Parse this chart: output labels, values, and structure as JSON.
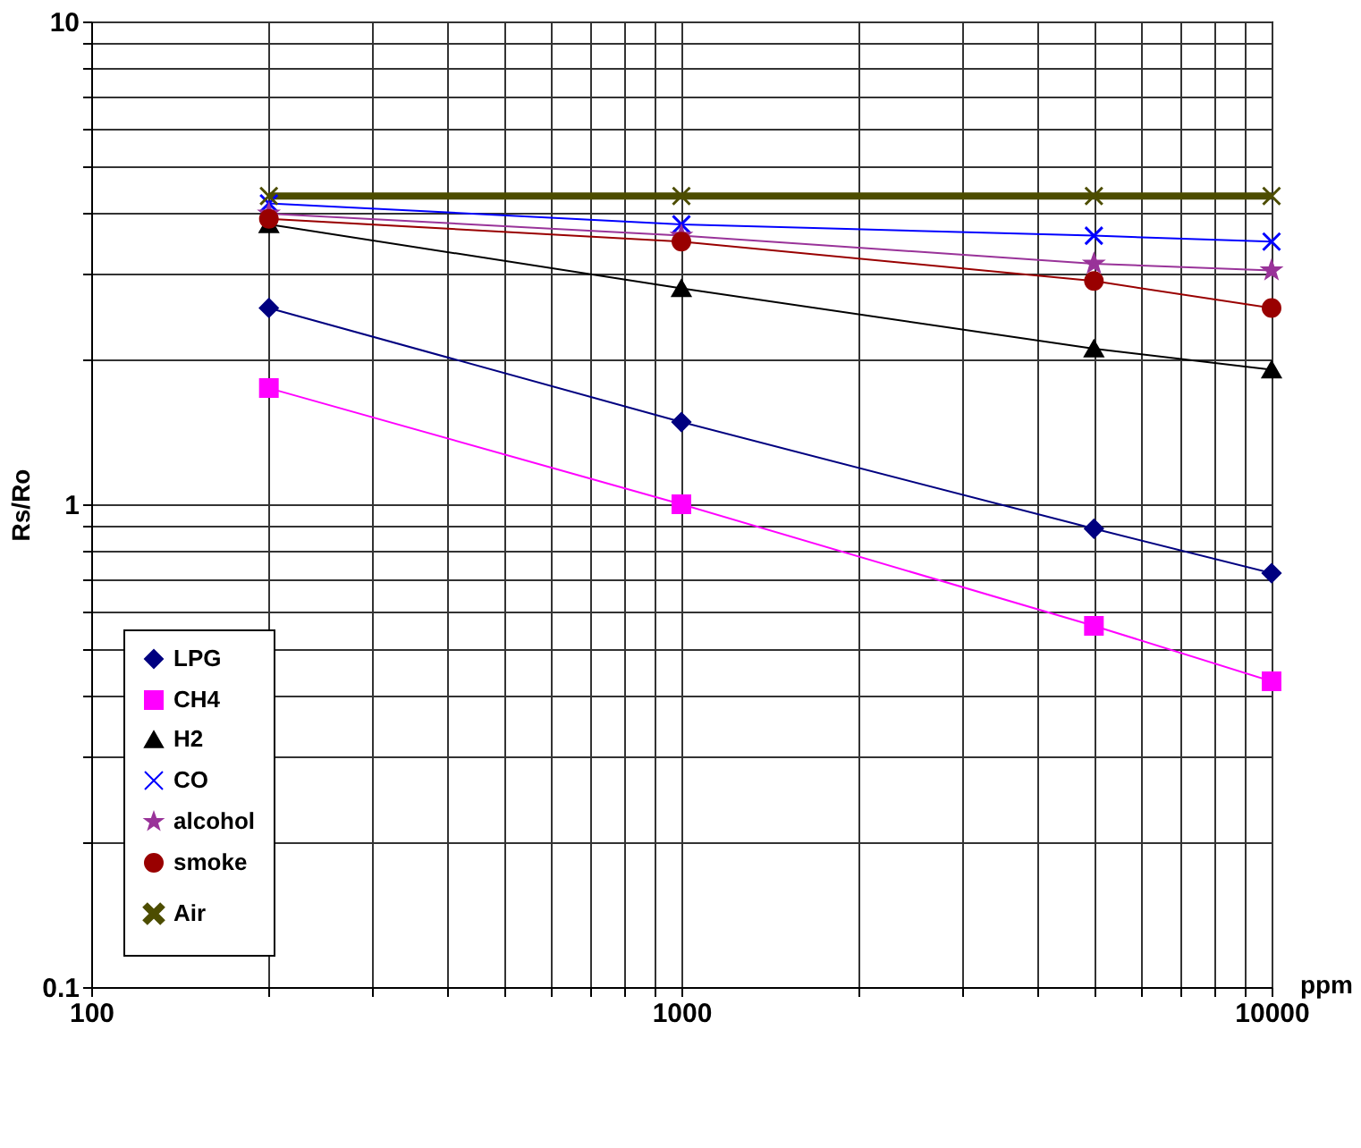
{
  "chart_data": {
    "type": "line",
    "xlabel": "ppm",
    "ylabel": "Rs/Ro",
    "log": "xy",
    "grid": true,
    "legend": "bottom left",
    "xlim": [
      100,
      10000
    ],
    "ylim": [
      0.1,
      10
    ],
    "xticks": [
      100,
      {
        "value": 200,
        "label": null
      },
      {
        "value": 300,
        "label": null
      },
      {
        "value": 400,
        "label": null
      },
      {
        "value": 500,
        "label": null
      },
      {
        "value": 600,
        "label": null
      },
      {
        "value": 700,
        "label": null
      },
      {
        "value": 800,
        "label": null
      },
      {
        "value": 900,
        "label": null
      },
      1000,
      {
        "value": 2000,
        "label": null
      },
      {
        "value": 3000,
        "label": null
      },
      {
        "value": 4000,
        "label": null
      },
      {
        "value": 5000,
        "label": null
      },
      {
        "value": 6000,
        "label": null
      },
      {
        "value": 7000,
        "label": null
      },
      {
        "value": 8000,
        "label": null
      },
      {
        "value": 9000,
        "label": null
      },
      10000
    ],
    "yticks": [
      {
        "value": 0.1,
        "label": "0.1"
      },
      {
        "value": 0.2,
        "label": null
      },
      {
        "value": 0.3,
        "label": null
      },
      {
        "value": 0.4,
        "label": null
      },
      {
        "value": 0.5,
        "label": null
      },
      {
        "value": 0.6,
        "label": null
      },
      {
        "value": 0.7,
        "label": null
      },
      {
        "value": 0.8,
        "label": null
      },
      {
        "value": 0.9,
        "label": null
      },
      1,
      {
        "value": 2,
        "label": null
      },
      {
        "value": 3,
        "label": null
      },
      {
        "value": 4,
        "label": null
      },
      {
        "value": 5,
        "label": null
      },
      {
        "value": 6,
        "label": null
      },
      {
        "value": 7,
        "label": null
      },
      {
        "value": 8,
        "label": null
      },
      {
        "value": 9,
        "label": null
      },
      10
    ],
    "x": [
      200,
      1000,
      5000,
      10000
    ],
    "series": [
      {
        "name": "LPG",
        "color": "#000080",
        "marker": "diamond",
        "values": [
          2.55,
          1.48,
          0.89,
          0.72
        ]
      },
      {
        "name": "CH4",
        "color": "#ff00ff",
        "marker": "square",
        "values": [
          1.74,
          1.0,
          0.56,
          0.43
        ]
      },
      {
        "name": "H2",
        "color": "#000000",
        "marker": "triangle",
        "values": [
          3.8,
          2.8,
          2.1,
          1.9
        ]
      },
      {
        "name": "CO",
        "color": "#0000ff",
        "marker": "cross",
        "values": [
          4.2,
          3.8,
          3.6,
          3.5
        ]
      },
      {
        "name": "alcohol",
        "color": "#993399",
        "marker": "star",
        "values": [
          4.0,
          3.6,
          3.15,
          3.05
        ]
      },
      {
        "name": "smoke",
        "color": "#990000",
        "marker": "circle",
        "values": [
          3.9,
          3.5,
          2.9,
          2.55
        ]
      },
      {
        "name": "Air",
        "color": "#4d4d00",
        "marker": "cross",
        "values": [
          4.35,
          4.35,
          4.35,
          4.35
        ]
      }
    ]
  }
}
